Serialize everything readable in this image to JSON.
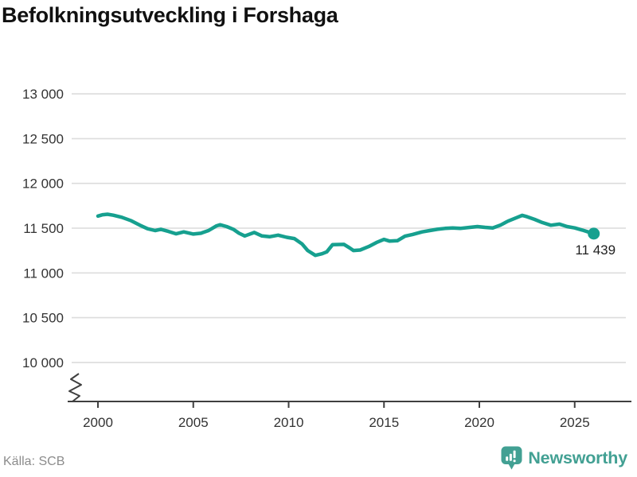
{
  "title": "Befolkningsutveckling i Forshaga",
  "source": "Källa: SCB",
  "branding": {
    "name": "Newsworthy",
    "logo_icon": "newsworthy-bubble-barchart-icon"
  },
  "colors": {
    "line": "#16a08f",
    "grid": "#dcdcdc",
    "axis": "#3f3f3f",
    "tick": "#333333",
    "title": "#111111",
    "annotation": "#1f1f1f",
    "source": "#8c8c8c",
    "brand": "#42a093"
  },
  "chart_data": {
    "type": "line",
    "title": "Befolkningsutveckling i Forshaga",
    "series_name": "Befolkning i Forshaga",
    "xlabel": "",
    "ylabel": "",
    "grid": "horizontal",
    "legend": "none",
    "axis_break": true,
    "xlim": [
      1998.4,
      2027.9
    ],
    "ylim": [
      9900,
      13100
    ],
    "xticks": [
      2000,
      2005,
      2010,
      2015,
      2020,
      2025
    ],
    "xtick_labels": [
      "2000",
      "2005",
      "2010",
      "2015",
      "2020",
      "2025"
    ],
    "yticks": [
      10000,
      10500,
      11000,
      11500,
      12000,
      12500,
      13000
    ],
    "ytick_labels": [
      "10 000",
      "10 500",
      "11 000",
      "11 500",
      "12 000",
      "12 500",
      "13 000"
    ],
    "x": [
      2000.0,
      2000.25,
      2000.5,
      2000.8,
      2001.25,
      2001.75,
      2002.2,
      2002.6,
      2003.0,
      2003.3,
      2003.7,
      2004.1,
      2004.5,
      2005.0,
      2005.4,
      2005.8,
      2006.2,
      2006.4,
      2006.75,
      2007.1,
      2007.4,
      2007.7,
      2008.2,
      2008.6,
      2009.0,
      2009.45,
      2009.9,
      2010.3,
      2010.7,
      2011.0,
      2011.4,
      2011.75,
      2012.0,
      2012.3,
      2012.9,
      2013.2,
      2013.4,
      2013.75,
      2014.2,
      2014.6,
      2015.0,
      2015.3,
      2015.7,
      2016.1,
      2016.5,
      2017.0,
      2017.4,
      2017.8,
      2018.2,
      2018.6,
      2019.0,
      2019.5,
      2019.9,
      2020.3,
      2020.7,
      2021.1,
      2021.5,
      2022.0,
      2022.25,
      2022.5,
      2022.9,
      2023.3,
      2023.75,
      2024.2,
      2024.6,
      2025.0,
      2025.4,
      2025.7,
      2026.0
    ],
    "values": [
      11635,
      11650,
      11655,
      11645,
      11622,
      11583,
      11533,
      11494,
      11473,
      11488,
      11464,
      11437,
      11458,
      11434,
      11443,
      11473,
      11524,
      11538,
      11518,
      11488,
      11443,
      11413,
      11452,
      11413,
      11404,
      11422,
      11398,
      11384,
      11324,
      11250,
      11196,
      11214,
      11235,
      11315,
      11319,
      11280,
      11250,
      11256,
      11295,
      11339,
      11375,
      11355,
      11360,
      11410,
      11430,
      11458,
      11473,
      11488,
      11497,
      11503,
      11497,
      11509,
      11518,
      11509,
      11503,
      11533,
      11578,
      11622,
      11643,
      11628,
      11598,
      11563,
      11533,
      11545,
      11518,
      11503,
      11479,
      11458,
      11439
    ],
    "end_value": 11439,
    "end_label": "11 439"
  }
}
